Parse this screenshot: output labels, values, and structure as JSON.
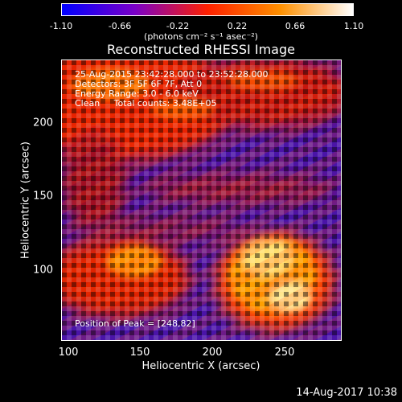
{
  "colorbar": {
    "ticks": [
      "-1.10",
      "-0.66",
      "-0.22",
      "0.22",
      "0.66",
      "1.10"
    ],
    "units": "(photons cm⁻² s⁻¹ asec⁻²)",
    "colors": [
      "#0000ff",
      "#7a00c8",
      "#ff2000",
      "#ff9000",
      "#ffffff"
    ]
  },
  "title": "Reconstructed RHESSI Image",
  "info": {
    "time": "25-Aug-2015 23:42:28.000 to 23:52:28.000",
    "detectors": "Detectors: 3F 5F 6F 7F, Att 0",
    "energy": "Energy Range: 3.0 - 6.0 keV",
    "clean": "Clean     Total counts: 3.48E+05",
    "peak": "Position of Peak = [248,82]"
  },
  "axes": {
    "xlabel": "Heliocentric X (arcsec)",
    "ylabel": "Heliocentric Y (arcsec)",
    "xticks": [
      "100",
      "150",
      "200",
      "250"
    ],
    "yticks": [
      "100",
      "150",
      "200"
    ]
  },
  "footer": "14-Aug-2017 10:38"
}
